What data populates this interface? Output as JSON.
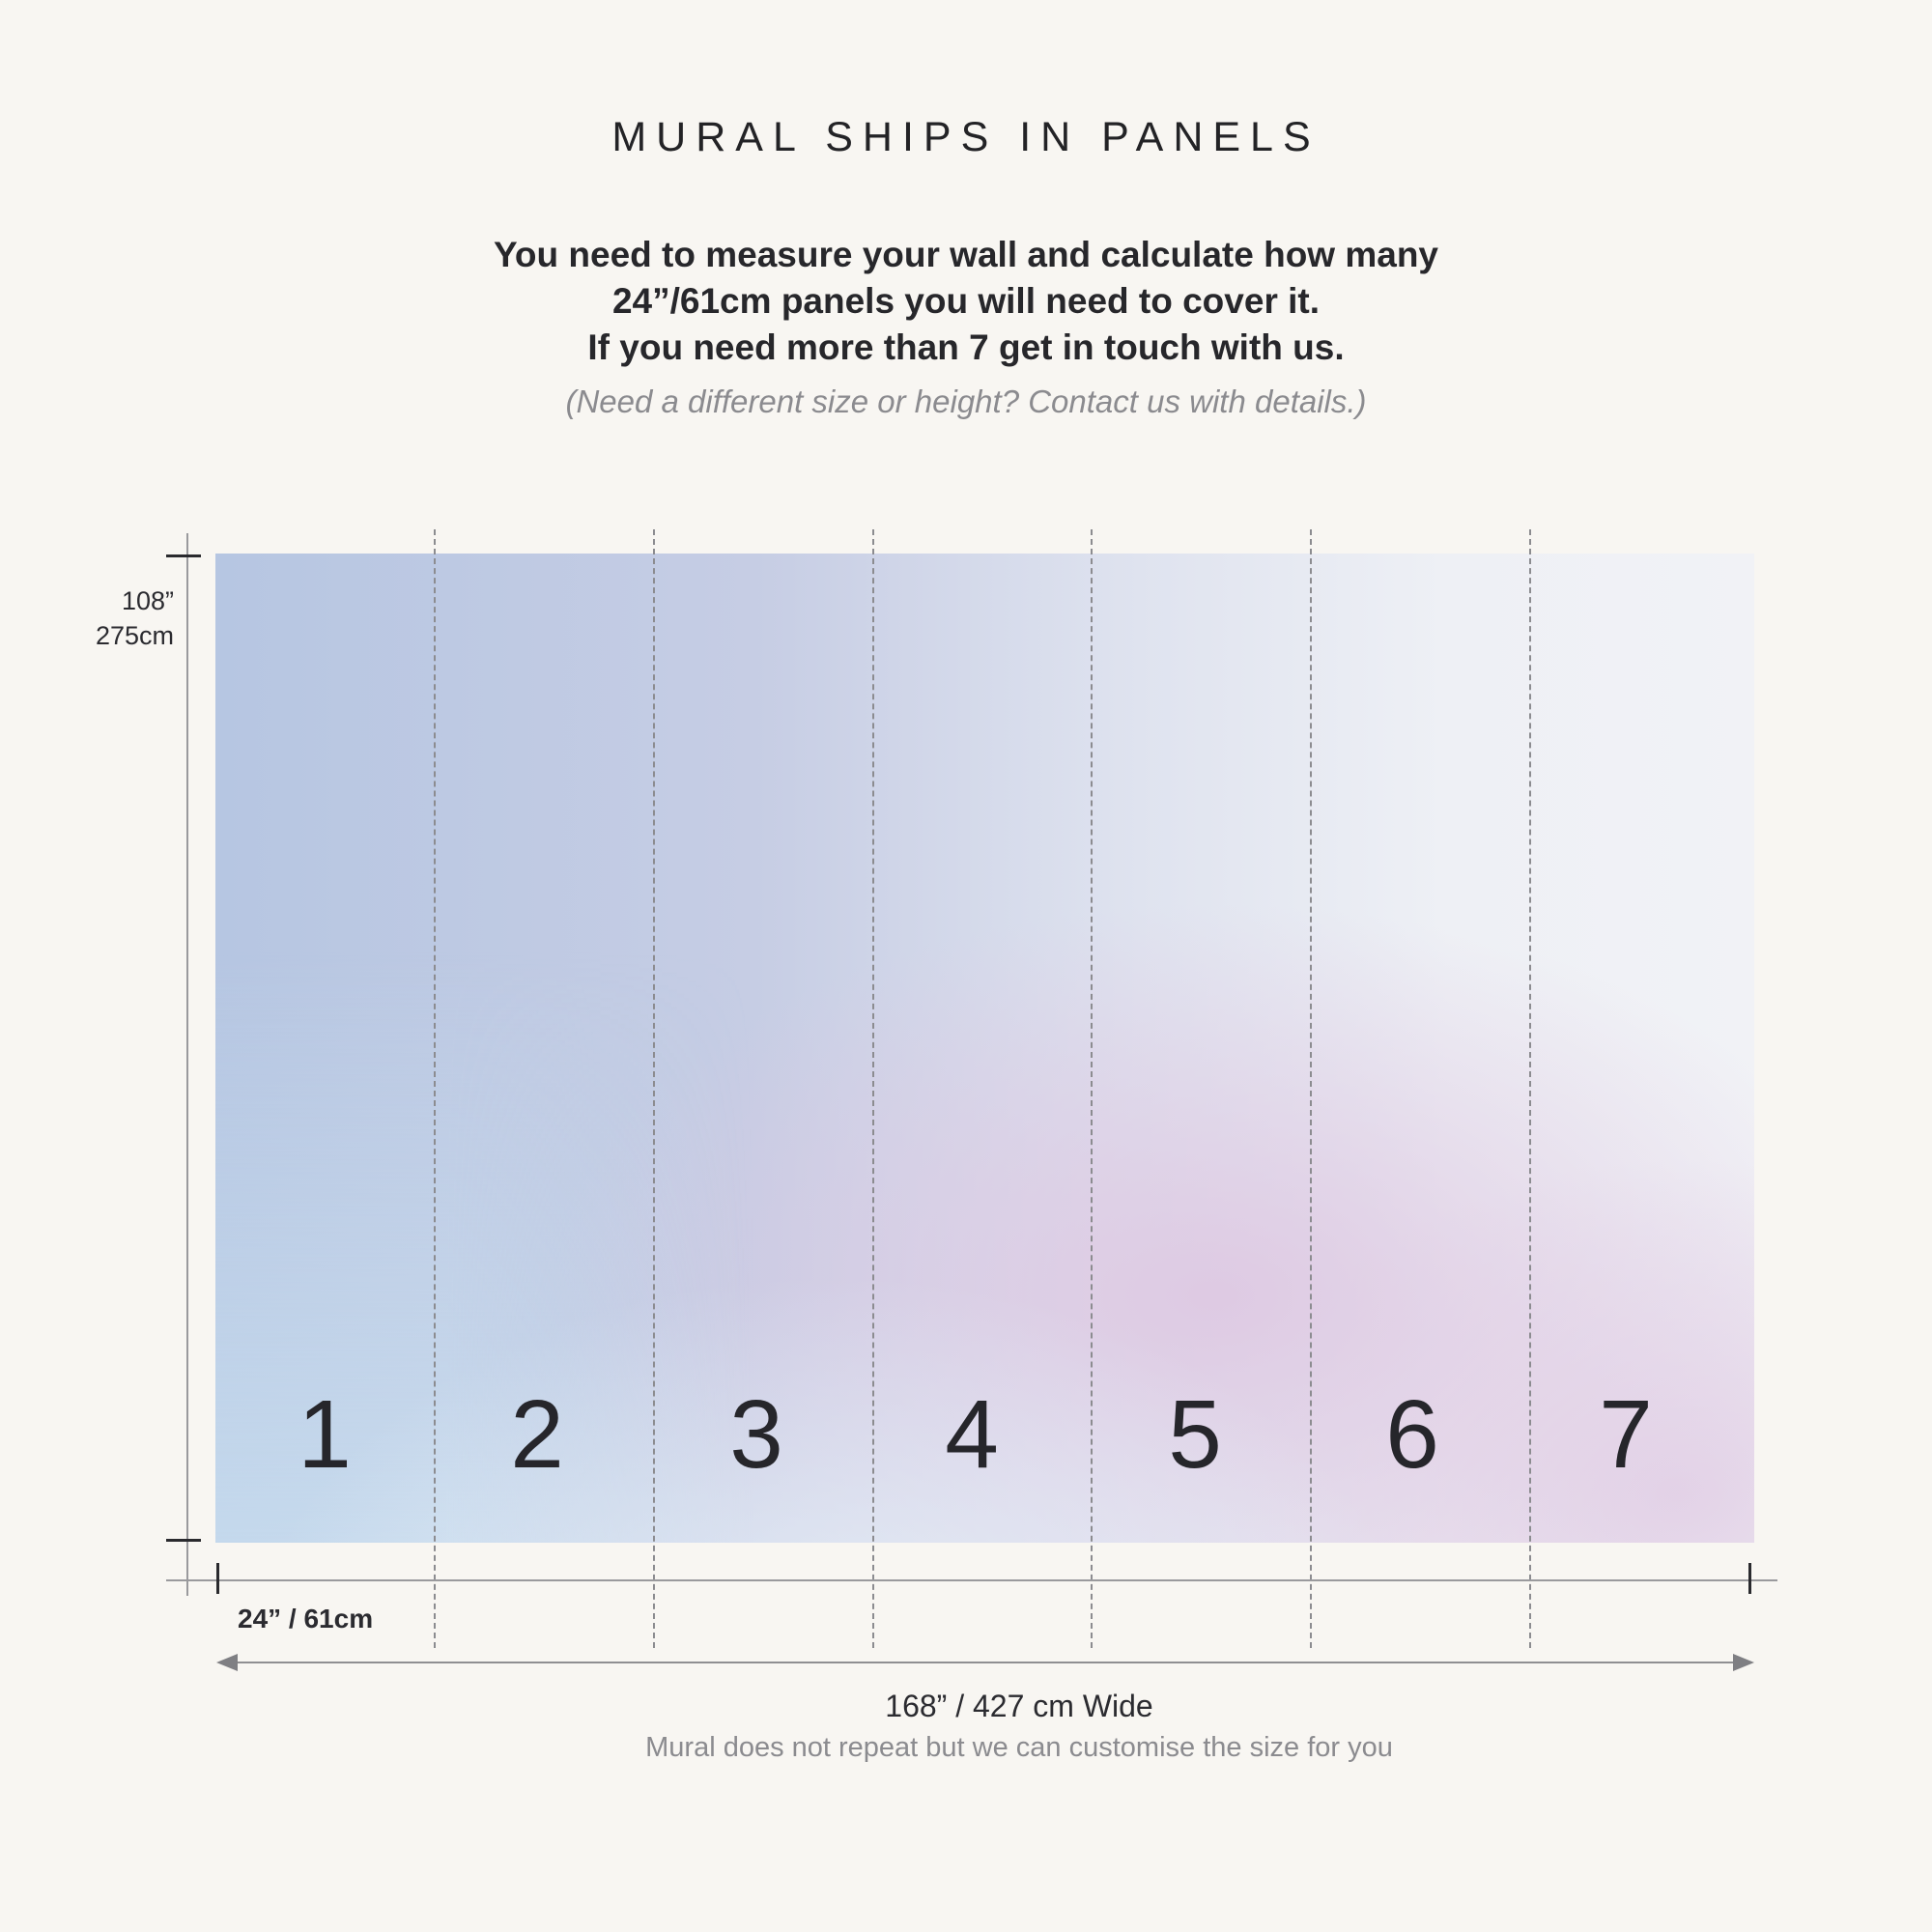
{
  "title": "MURAL SHIPS IN PANELS",
  "instructions": [
    "You need to measure your wall and calculate how many",
    "24”/61cm panels you will need to cover it.",
    "If you need more than 7 get in touch with us."
  ],
  "note": "(Need a different size or height? Contact us with details.)",
  "mural": {
    "panels": [
      "1",
      "2",
      "3",
      "4",
      "5",
      "6",
      "7"
    ],
    "colors": {
      "blue": "#b6c6e2",
      "light_blue": "#dcecf6",
      "lavender": "#ddc8e0",
      "pale": "#f1f2f6"
    }
  },
  "height": {
    "inches": "108”",
    "cm": "275cm"
  },
  "panel_width_label": "24” / 61cm",
  "total_width_label": "168” / 427 cm Wide",
  "sub_note": "Mural does not repeat but we can customise the size for you"
}
